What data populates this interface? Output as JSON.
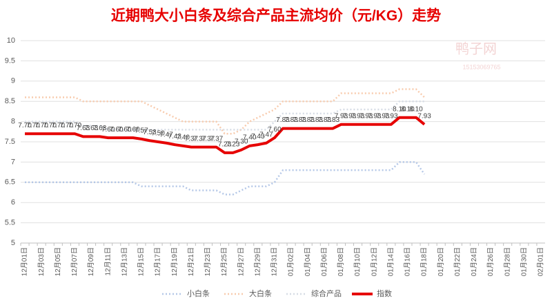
{
  "chart_data": {
    "type": "line",
    "title": "近期鸭大小白条及综合产品主流均价（元/KG）走势",
    "watermark": [
      "鸭子网",
      "15153069765"
    ],
    "categories": [
      "12月01日",
      null,
      "12月03日",
      null,
      "12月05日",
      null,
      "12月07日",
      null,
      "12月09日",
      null,
      "12月11日",
      null,
      "12月13日",
      null,
      "12月15日",
      null,
      "12月17日",
      null,
      "12月19日",
      null,
      "12月21日",
      null,
      "12月23日",
      null,
      "12月25日",
      null,
      "12月27日",
      null,
      "12月29日",
      null,
      "12月31日",
      null,
      "01月02日",
      null,
      "01月04日",
      null,
      "01月06日",
      null,
      "01月08日",
      null,
      "01月10日",
      null,
      "01月12日",
      null,
      "01月14日",
      null,
      "01月16日",
      null,
      "01月18日",
      null,
      "01月20日",
      null,
      "01月22日",
      null,
      "01月24日",
      null,
      "01月26日",
      null,
      "01月28日",
      null,
      "01月30日",
      null,
      "02月01日"
    ],
    "ylim": [
      5,
      10
    ],
    "yticks": [
      5,
      5.5,
      6,
      6.5,
      7,
      7.5,
      8,
      8.5,
      9,
      9.5,
      10
    ],
    "grid": true,
    "legend": "bottom",
    "series": [
      {
        "name": "小白条",
        "color": "#b4c7e7",
        "style": "dotted",
        "values": [
          6.5,
          6.5,
          6.5,
          6.5,
          6.5,
          6.5,
          6.5,
          6.5,
          6.5,
          6.5,
          6.5,
          6.5,
          6.5,
          6.5,
          6.4,
          6.4,
          6.4,
          6.4,
          6.4,
          6.4,
          6.3,
          6.3,
          6.3,
          6.3,
          6.2,
          6.2,
          6.3,
          6.4,
          6.4,
          6.4,
          6.5,
          6.8,
          6.8,
          6.8,
          6.8,
          6.8,
          6.8,
          6.8,
          6.8,
          6.8,
          6.8,
          6.8,
          6.8,
          6.8,
          6.8,
          7.0,
          7.0,
          7.0,
          6.7,
          null,
          null,
          null,
          null,
          null,
          null,
          null,
          null,
          null,
          null,
          null,
          null,
          null,
          null
        ]
      },
      {
        "name": "大白条",
        "color": "#f8cbad",
        "style": "dotted",
        "values": [
          8.6,
          8.6,
          8.6,
          8.6,
          8.6,
          8.6,
          8.6,
          8.5,
          8.5,
          8.5,
          8.5,
          8.5,
          8.5,
          8.5,
          8.5,
          8.4,
          8.3,
          8.2,
          8.1,
          8.0,
          8.0,
          8.0,
          8.0,
          8.0,
          7.7,
          7.7,
          7.8,
          8.0,
          8.1,
          8.2,
          8.3,
          8.5,
          8.5,
          8.5,
          8.5,
          8.5,
          8.5,
          8.5,
          8.7,
          8.7,
          8.7,
          8.7,
          8.7,
          8.7,
          8.7,
          8.8,
          8.8,
          8.8,
          8.6,
          null,
          null,
          null,
          null,
          null,
          null,
          null,
          null,
          null,
          null,
          null,
          null,
          null,
          null
        ]
      },
      {
        "name": "综合产品",
        "color": "#d6dce5",
        "style": "dotted",
        "values": [
          8.0,
          8.0,
          8.0,
          8.0,
          8.0,
          8.0,
          8.0,
          7.9,
          7.9,
          7.9,
          7.8,
          7.8,
          7.8,
          7.8,
          7.8,
          7.8,
          7.8,
          7.8,
          7.8,
          7.8,
          7.8,
          7.8,
          7.8,
          7.8,
          7.8,
          7.8,
          7.8,
          7.8,
          7.8,
          7.8,
          8.0,
          8.2,
          8.2,
          8.2,
          8.2,
          8.2,
          8.2,
          8.2,
          8.3,
          8.3,
          8.3,
          8.3,
          8.3,
          8.3,
          8.3,
          8.5,
          8.5,
          8.5,
          8.5,
          null,
          null,
          null,
          null,
          null,
          null,
          null,
          null,
          null,
          null,
          null,
          null,
          null,
          null
        ]
      },
      {
        "name": "指数",
        "color": "#e60000",
        "style": "solid",
        "values": [
          7.7,
          7.7,
          7.7,
          7.7,
          7.7,
          7.7,
          7.7,
          7.63,
          7.63,
          7.63,
          7.6,
          7.6,
          7.6,
          7.6,
          7.57,
          7.53,
          7.5,
          7.47,
          7.43,
          7.4,
          7.37,
          7.37,
          7.37,
          7.37,
          7.23,
          7.23,
          7.3,
          7.4,
          7.43,
          7.47,
          7.6,
          7.83,
          7.83,
          7.83,
          7.83,
          7.83,
          7.83,
          7.83,
          7.93,
          7.93,
          7.93,
          7.93,
          7.93,
          7.93,
          7.93,
          8.1,
          8.1,
          8.1,
          7.93,
          null,
          null,
          null,
          null,
          null,
          null,
          null,
          null,
          null,
          null,
          null,
          null,
          null,
          null
        ],
        "value_labels": [
          "7.70",
          "7.70",
          "7.70",
          "7.70",
          "7.70",
          "7.70",
          "7.70",
          "7.63",
          "7.63",
          "7.63",
          "7.60",
          "7.60",
          "7.60",
          "7.60",
          "7.57",
          "7.53",
          "7.50",
          "7.47",
          "7.43",
          "7.40",
          "7.37",
          "7.37",
          "7.37",
          "7.37",
          "7.23",
          "7.23",
          "7.30",
          "7.40",
          "7.43",
          "7.47",
          "7.60",
          "7.83",
          "7.83",
          "7.83",
          "7.83",
          "7.83",
          "7.83",
          "7.83",
          "7.93",
          "7.93",
          "7.93",
          "7.93",
          "7.93",
          "7.93",
          "7.93",
          "8.10",
          "8.10",
          "8.10",
          "7.93",
          null,
          null,
          null,
          null,
          null,
          null,
          null,
          null,
          null,
          null,
          null,
          null,
          null,
          null
        ]
      }
    ]
  }
}
